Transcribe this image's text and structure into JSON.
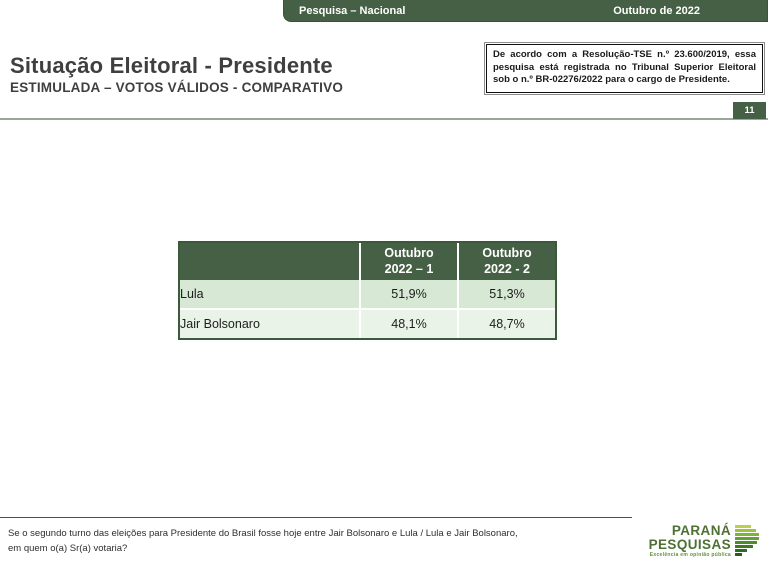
{
  "header": {
    "left": "Pesquisa – Nacional",
    "right": "Outubro de 2022"
  },
  "title": {
    "main": "Situação Eleitoral - Presidente",
    "subtitle": "ESTIMULADA – VOTOS VÁLIDOS - COMPARATIVO"
  },
  "regulatory_note": "De acordo com a Resolução-TSE n.º 23.600/2019, essa pesquisa está registrada no Tribunal Superior Eleitoral sob o n.º BR-02276/2022 para o cargo de Presidente.",
  "page_number": "11",
  "chart_data": {
    "type": "table",
    "columns": [
      "",
      "Outubro 2022 – 1",
      "Outubro 2022 - 2"
    ],
    "rows": [
      {
        "label": "Lula",
        "values": [
          "51,9%",
          "51,3%"
        ]
      },
      {
        "label": "Jair Bolsonaro",
        "values": [
          "48,1%",
          "48,7%"
        ]
      }
    ],
    "title": "Situação Eleitoral - Presidente — Estimulada, votos válidos, comparativo"
  },
  "table_display": {
    "col1": "Outubro\n2022 – 1",
    "col2": "Outubro\n2022 - 2"
  },
  "footer": {
    "question_line1": "Se o segundo turno das eleições para Presidente do Brasil fosse hoje entre Jair Bolsonaro e Lula / Lula e Jair Bolsonaro,",
    "question_line2": "em quem o(a) Sr(a) votaria?",
    "logo": {
      "line1": "PARANÁ",
      "line2": "PESQUISAS",
      "tagline": "Excelência em opinião pública"
    }
  },
  "colors": {
    "dark_green": "#456044",
    "row_green": "#d7e8d4",
    "row_light_green": "#eaf3e8",
    "table_border": "#3c5a3b",
    "logo_green": "#4c7132"
  }
}
